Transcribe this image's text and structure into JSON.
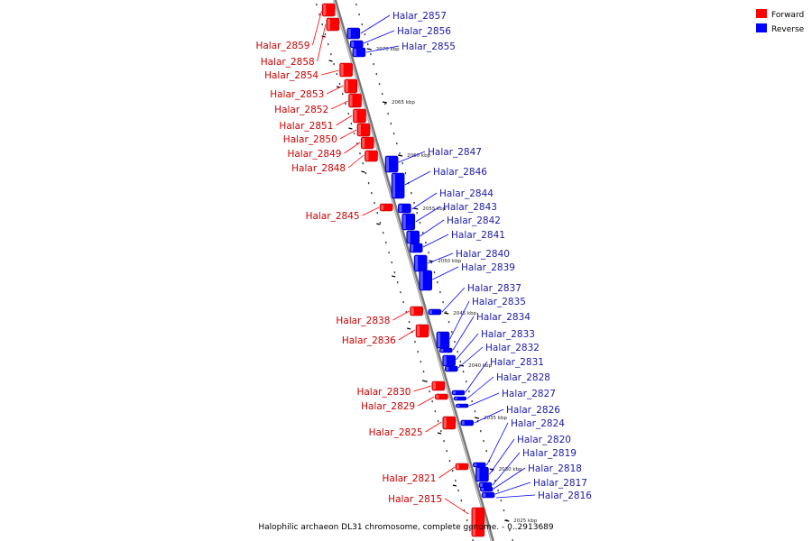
{
  "caption": "Halophilic archaeon DL31 chromosome, complete genome. - 0..2913689",
  "legend": [
    {
      "label": "Forward",
      "color": "#ff0000"
    },
    {
      "label": "Reverse",
      "color": "#0000ff"
    }
  ],
  "colors": {
    "forward": "#ff0000",
    "reverse": "#0000ff",
    "forward_label": "#cc0000",
    "reverse_label": "#1a1aa6",
    "axis": "#888888"
  },
  "ticks": [
    "2070 kbp",
    "2065 kbp",
    "2060 kbp",
    "2055 kbp",
    "2050 kbp",
    "2045 kbp",
    "2040 kbp",
    "2035 kbp",
    "2030 kbp",
    "2025 kbp"
  ],
  "forward_genes": [
    "Halar_2859",
    "Halar_2858",
    "Halar_2854",
    "Halar_2853",
    "Halar_2852",
    "Halar_2851",
    "Halar_2850",
    "Halar_2849",
    "Halar_2848",
    "Halar_2845",
    "Halar_2838",
    "Halar_2836",
    "Halar_2830",
    "Halar_2829",
    "Halar_2825",
    "Halar_2821",
    "Halar_2815"
  ],
  "reverse_genes": [
    "Halar_2857",
    "Halar_2856",
    "Halar_2855",
    "Halar_2847",
    "Halar_2846",
    "Halar_2844",
    "Halar_2843",
    "Halar_2842",
    "Halar_2841",
    "Halar_2840",
    "Halar_2839",
    "Halar_2837",
    "Halar_2835",
    "Halar_2834",
    "Halar_2833",
    "Halar_2832",
    "Halar_2831",
    "Halar_2828",
    "Halar_2827",
    "Halar_2826",
    "Halar_2824",
    "Halar_2820",
    "Halar_2819",
    "Halar_2818",
    "Halar_2817",
    "Halar_2816"
  ]
}
